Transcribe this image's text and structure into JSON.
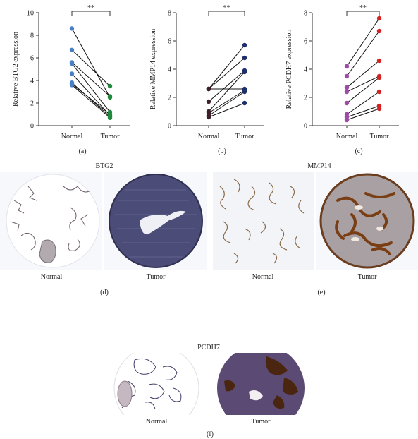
{
  "chart_data": [
    {
      "type": "scatter",
      "paired": true,
      "panel_label": "(a)",
      "ylabel": "Relative BTG2 expression",
      "categories": [
        "Normal",
        "Tumor"
      ],
      "ylim": [
        0,
        10
      ],
      "yticks": [
        0,
        2,
        4,
        6,
        8,
        10
      ],
      "significance": "**",
      "colors": {
        "Normal": "#4a7fc6",
        "Tumor": "#1e8a3c"
      },
      "pairs": [
        [
          8.6,
          2.5
        ],
        [
          6.7,
          3.5
        ],
        [
          5.5,
          1.2
        ],
        [
          5.6,
          2.6
        ],
        [
          4.6,
          0.9
        ],
        [
          3.8,
          0.8
        ],
        [
          3.6,
          0.7
        ],
        [
          3.7,
          1.0
        ]
      ]
    },
    {
      "type": "scatter",
      "paired": true,
      "panel_label": "(b)",
      "ylabel": "Relative MMP14 expression",
      "categories": [
        "Normal",
        "Tumor"
      ],
      "ylim": [
        0,
        8
      ],
      "yticks": [
        0,
        2,
        4,
        6,
        8
      ],
      "significance": "**",
      "colors": {
        "Normal": "#3f1f2a",
        "Tumor": "#1f2f6b"
      },
      "pairs": [
        [
          2.6,
          5.7
        ],
        [
          2.6,
          4.8
        ],
        [
          2.6,
          2.6
        ],
        [
          1.7,
          3.9
        ],
        [
          1.0,
          3.8
        ],
        [
          0.9,
          2.5
        ],
        [
          0.7,
          2.4
        ],
        [
          0.6,
          1.6
        ]
      ]
    },
    {
      "type": "scatter",
      "paired": true,
      "panel_label": "(c)",
      "ylabel": "Relative PCDH7 expression",
      "categories": [
        "Normal",
        "Tumor"
      ],
      "ylim": [
        0,
        8
      ],
      "yticks": [
        0,
        2,
        4,
        6,
        8
      ],
      "significance": "**",
      "colors": {
        "Normal": "#a04aa8",
        "Tumor": "#d42222"
      },
      "pairs": [
        [
          4.2,
          7.6
        ],
        [
          3.5,
          6.7
        ],
        [
          2.7,
          4.6
        ],
        [
          2.4,
          3.5
        ],
        [
          1.6,
          3.4
        ],
        [
          0.8,
          2.4
        ],
        [
          0.6,
          1.4
        ],
        [
          0.4,
          1.2
        ]
      ]
    }
  ],
  "ihc": {
    "btg2": {
      "title": "BTG2",
      "normal_label": "Normal",
      "tumor_label": "Tumor",
      "panel_label": "(d)"
    },
    "mmp14": {
      "title": "MMP14",
      "normal_label": "Normal",
      "tumor_label": "Tumor",
      "panel_label": "(e)"
    },
    "pcdh7": {
      "title": "PCDH7",
      "normal_label": "Normal",
      "tumor_label": "Tumor",
      "panel_label": "(f)"
    }
  }
}
